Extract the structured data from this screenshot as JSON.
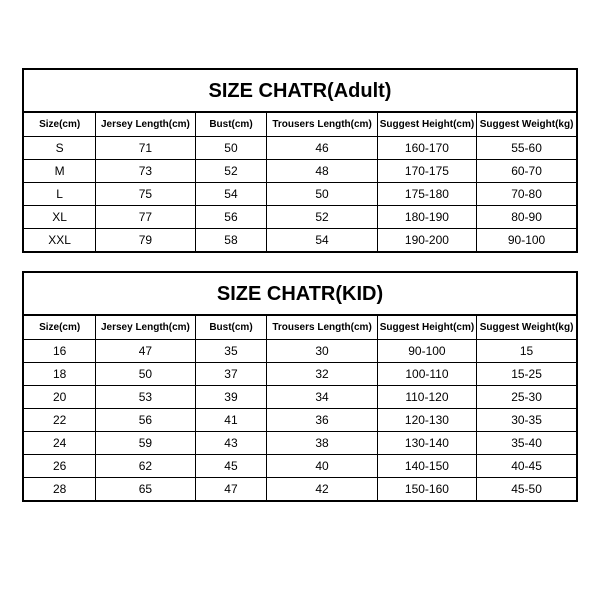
{
  "adult": {
    "title": "SIZE CHATR(Adult)",
    "columns": [
      "Size(cm)",
      "Jersey Length(cm)",
      "Bust(cm)",
      "Trousers Length(cm)",
      "Suggest Height(cm)",
      "Suggest Weight(kg)"
    ],
    "rows": [
      [
        "S",
        "71",
        "50",
        "46",
        "160-170",
        "55-60"
      ],
      [
        "M",
        "73",
        "52",
        "48",
        "170-175",
        "60-70"
      ],
      [
        "L",
        "75",
        "54",
        "50",
        "175-180",
        "70-80"
      ],
      [
        "XL",
        "77",
        "56",
        "52",
        "180-190",
        "80-90"
      ],
      [
        "XXL",
        "79",
        "58",
        "54",
        "190-200",
        "90-100"
      ]
    ]
  },
  "kid": {
    "title": "SIZE CHATR(KID)",
    "columns": [
      "Size(cm)",
      "Jersey Length(cm)",
      "Bust(cm)",
      "Trousers Length(cm)",
      "Suggest Height(cm)",
      "Suggest Weight(kg)"
    ],
    "rows": [
      [
        "16",
        "47",
        "35",
        "30",
        "90-100",
        "15"
      ],
      [
        "18",
        "50",
        "37",
        "32",
        "100-110",
        "15-25"
      ],
      [
        "20",
        "53",
        "39",
        "34",
        "110-120",
        "25-30"
      ],
      [
        "22",
        "56",
        "41",
        "36",
        "120-130",
        "30-35"
      ],
      [
        "24",
        "59",
        "43",
        "38",
        "130-140",
        "35-40"
      ],
      [
        "26",
        "62",
        "45",
        "40",
        "140-150",
        "40-45"
      ],
      [
        "28",
        "65",
        "47",
        "42",
        "150-160",
        "45-50"
      ]
    ]
  },
  "style": {
    "background_color": "#ffffff",
    "text_color": "#000000",
    "border_color": "#000000",
    "title_fontsize_pt": 15,
    "header_fontsize_pt": 8,
    "cell_fontsize_pt": 9,
    "font_family": "Arial"
  }
}
